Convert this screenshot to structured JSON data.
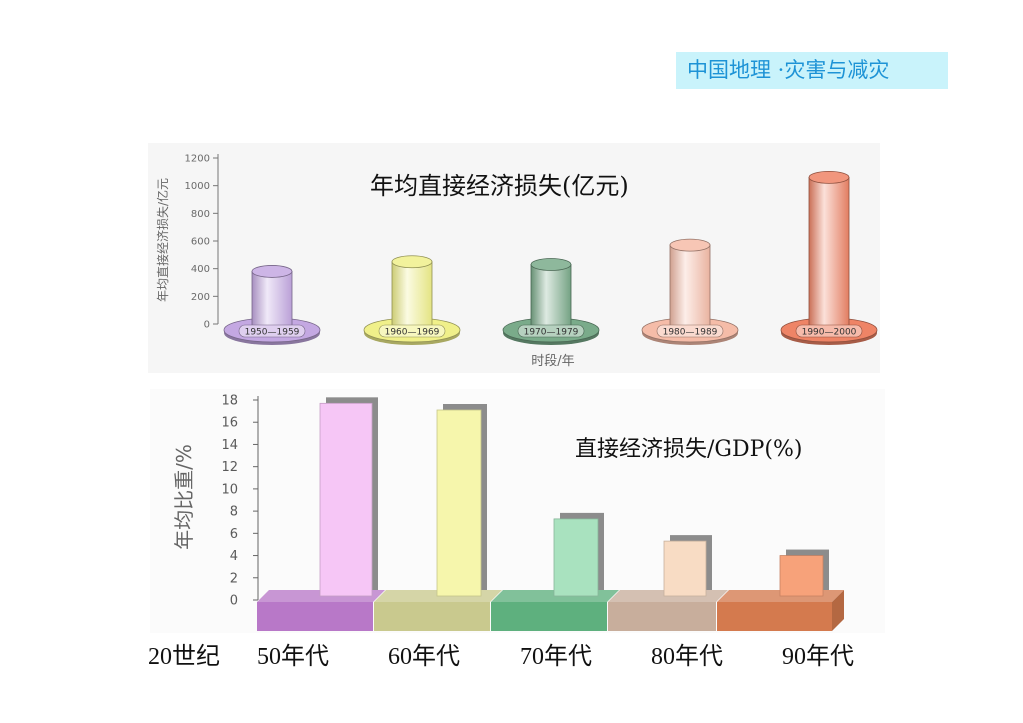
{
  "header": {
    "title": "中国地理 ·灾害与减灾",
    "background": "#c9f3fb",
    "color": "#1d93d6"
  },
  "chart_data": [
    {
      "type": "bar",
      "title": "年均直接经济损失(亿元)",
      "xlabel": "时段/年",
      "ylabel": "年均直接经济损失/亿元",
      "ylim": [
        0,
        1200
      ],
      "yticks": [
        0,
        200,
        400,
        600,
        800,
        1000,
        1200
      ],
      "categories": [
        "1950—1959",
        "1960—1969",
        "1970—1979",
        "1980—1989",
        "1990—2000"
      ],
      "values": [
        380,
        450,
        430,
        570,
        1060
      ],
      "colors": [
        "#c4a8e2",
        "#f0f08a",
        "#7aab8a",
        "#f5bca8",
        "#ee8466"
      ],
      "grid": false
    },
    {
      "type": "bar",
      "title": "直接经济损失/GDP(%)",
      "ylabel": "年均比重/%",
      "ylim": [
        0,
        18
      ],
      "yticks": [
        0,
        2,
        4,
        6,
        8,
        10,
        12,
        14,
        16,
        18
      ],
      "category_prefix": "20世纪",
      "categories": [
        "50年代",
        "60年代",
        "70年代",
        "80年代",
        "90年代"
      ],
      "values": [
        17.7,
        17.1,
        7.3,
        5.3,
        4.0
      ],
      "colors": [
        "#f6c6f6",
        "#f6f6ac",
        "#a9e2bf",
        "#f8dcc4",
        "#f7a27a"
      ],
      "base_colors": [
        "#b878c8",
        "#c9c98e",
        "#5eb07e",
        "#c8ae9c",
        "#d47a4e"
      ],
      "grid": false
    }
  ]
}
